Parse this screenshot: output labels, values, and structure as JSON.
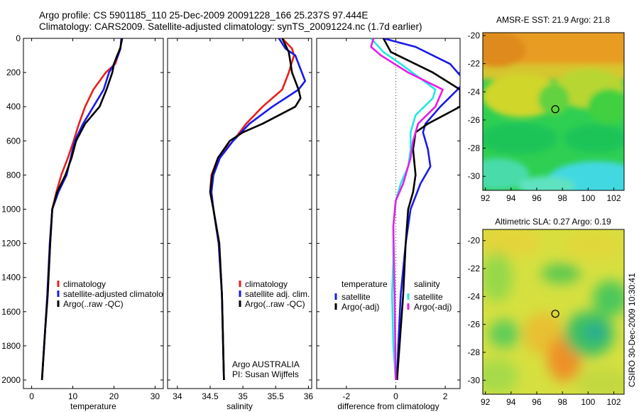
{
  "figure": {
    "title_line1": "Argo profile: CS 5901185_110 25-Dec-2009 20091228_166 25.237S 97.444E",
    "title_line2": "Climatology: CARS2009. Satellite-adjusted climatology: synTS_20091224.nc (1.7d earlier)",
    "side_stamp": "CSIRO 30-Dec-2009 10:30:41"
  },
  "colors": {
    "red": "#e8201a",
    "blue": "#1a1ae8",
    "black": "#000000",
    "cyan": "#22e6e6",
    "magenta": "#e61ee6"
  },
  "chart_data": [
    {
      "id": "temperature",
      "type": "line",
      "xlabel": "temperature",
      "ylabel": "",
      "xlim": [
        -2,
        32
      ],
      "ylim": [
        0,
        2050
      ],
      "xticks": [
        0,
        10,
        20,
        30
      ],
      "xtick_labels": [
        "0",
        "10",
        "20",
        "30"
      ],
      "yticks": [
        0,
        200,
        400,
        600,
        800,
        1000,
        1200,
        1400,
        1600,
        1800,
        2000
      ],
      "ytick_labels": [
        "0",
        "200",
        "400",
        "600",
        "800",
        "1000",
        "1200",
        "1400",
        "1600",
        "1800",
        "2000"
      ],
      "y_reversed": true,
      "legend": {
        "position": "lower-right",
        "items": [
          {
            "label": "climatology",
            "color": "red"
          },
          {
            "label": "satellite-adjusted climatolog",
            "color": "blue"
          },
          {
            "label": "Argo(..raw -QC)",
            "color": "black"
          }
        ]
      },
      "series": [
        {
          "name": "climatology",
          "color": "red",
          "x": [
            21.4,
            21.0,
            20.3,
            18.0,
            15.0,
            13.0,
            11.5,
            10.2,
            8.8,
            7.2,
            6.0,
            5.0,
            4.5,
            3.9,
            3.3,
            2.5
          ],
          "y": [
            60,
            100,
            150,
            200,
            300,
            400,
            500,
            600,
            700,
            800,
            900,
            1000,
            1200,
            1500,
            1700,
            2000
          ]
        },
        {
          "name": "satellite-adjusted climatology",
          "color": "blue",
          "x": [
            21.8,
            21.6,
            21.0,
            20.0,
            18.8,
            17.5,
            15.0,
            12.5,
            10.5,
            9.5,
            8.5,
            6.5,
            5.0,
            4.4,
            3.8,
            3.3,
            2.5
          ],
          "y": [
            0,
            60,
            100,
            150,
            200,
            300,
            400,
            500,
            600,
            700,
            800,
            900,
            1000,
            1200,
            1500,
            1700,
            2000
          ]
        },
        {
          "name": "Argo(..raw -QC)",
          "color": "black",
          "x": [
            22.0,
            21.5,
            20.8,
            20.0,
            19.6,
            18.2,
            16.5,
            13.0,
            10.8,
            9.7,
            8.2,
            6.2,
            5.0,
            4.5,
            3.9,
            3.3,
            2.5
          ],
          "y": [
            0,
            60,
            100,
            150,
            200,
            300,
            400,
            500,
            600,
            700,
            800,
            900,
            1000,
            1200,
            1500,
            1700,
            2000
          ]
        }
      ]
    },
    {
      "id": "salinity",
      "type": "line",
      "xlabel": "salinity",
      "ylabel": "",
      "xlim": [
        33.85,
        36.05
      ],
      "ylim": [
        0,
        2050
      ],
      "xticks": [
        34,
        34.5,
        35,
        35.5,
        36
      ],
      "xtick_labels": [
        "34",
        "34.5",
        "35",
        "35.5",
        "36"
      ],
      "y_reversed": true,
      "legend": {
        "position": "lower-right",
        "items": [
          {
            "label": "climatology",
            "color": "red"
          },
          {
            "label": "satellite adj. clim.",
            "color": "blue"
          },
          {
            "label": "Argo(..raw -QC)",
            "color": "black"
          }
        ]
      },
      "annotation": [
        "Argo AUSTRALIA",
        "PI: Susan Wijffels"
      ],
      "series": [
        {
          "name": "climatology",
          "color": "red",
          "x": [
            35.6,
            35.75,
            35.78,
            35.7,
            35.6,
            35.3,
            35.05,
            34.85,
            34.62,
            34.52,
            34.5,
            34.55,
            34.63,
            34.68,
            34.71
          ],
          "y": [
            0,
            60,
            100,
            200,
            300,
            400,
            500,
            600,
            700,
            800,
            900,
            1000,
            1200,
            1500,
            2000
          ]
        },
        {
          "name": "satellite adj. clim.",
          "color": "blue",
          "x": [
            35.55,
            35.65,
            35.8,
            35.95,
            35.85,
            35.45,
            35.1,
            34.85,
            34.65,
            34.55,
            34.52,
            34.55,
            34.63,
            34.68,
            34.71
          ],
          "y": [
            0,
            60,
            100,
            250,
            300,
            400,
            500,
            600,
            700,
            800,
            900,
            1000,
            1200,
            1500,
            2000
          ]
        },
        {
          "name": "Argo(..raw -QC)",
          "color": "black",
          "x": [
            35.6,
            35.65,
            35.7,
            35.75,
            35.85,
            35.88,
            35.8,
            35.3,
            35.0,
            34.8,
            34.62,
            34.53,
            34.5,
            34.55,
            34.64,
            34.68,
            34.71
          ],
          "y": [
            0,
            40,
            80,
            200,
            300,
            350,
            400,
            500,
            550,
            600,
            700,
            800,
            900,
            1000,
            1200,
            1500,
            2000
          ]
        }
      ]
    },
    {
      "id": "difference",
      "type": "line",
      "xlabel": "difference from climatology",
      "ylabel": "",
      "xlim": [
        -3.2,
        2.6
      ],
      "ylim": [
        0,
        2050
      ],
      "xticks": [
        -2,
        0,
        2
      ],
      "xtick_labels": [
        "-2",
        "0",
        "2"
      ],
      "y_reversed": true,
      "zero_line": true,
      "legend": {
        "position": "lower",
        "groups": [
          {
            "title": "temperature",
            "items": [
              {
                "label": "satellite",
                "color": "blue"
              },
              {
                "label": "Argo(-adj)",
                "color": "black"
              }
            ]
          },
          {
            "title": "salinity",
            "items": [
              {
                "label": "satellite",
                "color": "cyan"
              },
              {
                "label": "Argo(-adj)",
                "color": "magenta"
              }
            ]
          }
        ]
      },
      "series": [
        {
          "name": "temperature satellite",
          "color": "blue",
          "x": [
            -0.5,
            0.8,
            2.2,
            2.8,
            2.5,
            1.8,
            1.2,
            1.1,
            1.3,
            1.4,
            1.0,
            0.6,
            0.4,
            0.2,
            0.1,
            0.05
          ],
          "y": [
            0,
            50,
            150,
            250,
            300,
            400,
            500,
            550,
            650,
            750,
            850,
            1000,
            1200,
            1500,
            1800,
            2000
          ]
        },
        {
          "name": "temperature Argo(-adj)",
          "color": "black",
          "x": [
            -0.5,
            -0.2,
            1.5,
            2.6,
            2.6,
            1.3,
            0.8,
            0.7,
            0.8,
            0.7,
            0.5,
            0.4,
            0.3,
            0.15,
            0.05
          ],
          "y": [
            0,
            80,
            200,
            300,
            400,
            500,
            550,
            650,
            800,
            900,
            1000,
            1200,
            1500,
            1800,
            2000
          ]
        },
        {
          "name": "salinity satellite",
          "color": "cyan",
          "x": [
            -1.0,
            -0.5,
            0.2,
            1.6,
            1.5,
            0.8,
            0.6,
            0.6,
            0.5,
            0.2,
            0.0,
            -0.1,
            -0.1,
            -0.15,
            -0.1,
            0.0
          ],
          "y": [
            0,
            80,
            150,
            300,
            350,
            450,
            550,
            650,
            750,
            850,
            950,
            1100,
            1300,
            1500,
            1800,
            2000
          ]
        },
        {
          "name": "salinity Argo(-adj)",
          "color": "magenta",
          "x": [
            -0.9,
            -1.0,
            -0.6,
            0.5,
            1.9,
            1.6,
            0.9,
            0.7,
            0.6,
            0.3,
            0.0,
            -0.1,
            -0.05,
            0.0
          ],
          "y": [
            0,
            50,
            100,
            200,
            300,
            400,
            500,
            600,
            700,
            850,
            950,
            1100,
            1500,
            2000
          ]
        }
      ]
    },
    {
      "id": "sst_map",
      "type": "heatmap",
      "title": "AMSR-E SST: 21.9 Argo: 21.8",
      "xlim": [
        91.8,
        102.8
      ],
      "ylim": [
        -31,
        -19.8
      ],
      "xticks": [
        92,
        94,
        96,
        98,
        100,
        102
      ],
      "yticks": [
        -20,
        -22,
        -24,
        -26,
        -28,
        -30
      ],
      "xtick_labels": [
        "92",
        "94",
        "96",
        "98",
        "100",
        "102"
      ],
      "ytick_labels": [
        "-20",
        "-22",
        "-24",
        "-26",
        "-28",
        "-30"
      ],
      "marker": {
        "lon": 97.444,
        "lat": -25.237
      }
    },
    {
      "id": "sla_map",
      "type": "heatmap",
      "title": "Altimetric SLA: 0.27 Argo: 0.19",
      "xlim": [
        91.8,
        102.8
      ],
      "ylim": [
        -31,
        -19.2
      ],
      "xticks": [
        92,
        94,
        96,
        98,
        100,
        102
      ],
      "yticks": [
        -20,
        -22,
        -24,
        -26,
        -28,
        -30
      ],
      "xtick_labels": [
        "92",
        "94",
        "96",
        "98",
        "100",
        "102"
      ],
      "ytick_labels": [
        "-20",
        "-22",
        "-24",
        "-26",
        "-28",
        "-30"
      ],
      "marker": {
        "lon": 97.444,
        "lat": -25.237
      }
    }
  ]
}
